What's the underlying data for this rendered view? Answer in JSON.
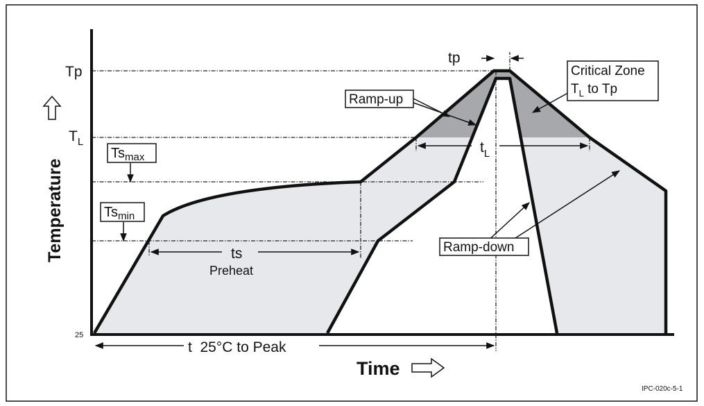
{
  "axes": {
    "y_label": "Temperature",
    "x_label": "Time",
    "levels": {
      "peak": "Tp",
      "liquidus": {
        "main": "T",
        "sub": "L"
      },
      "base": "25"
    }
  },
  "annotations": {
    "ts_max": {
      "main": "Ts",
      "sub": "max"
    },
    "ts_min": {
      "main": "Ts",
      "sub": "min"
    },
    "tp": "tp",
    "critical_zone": {
      "line1": "Critical Zone",
      "line2_main": "T",
      "line2_sub": "L",
      "line2_rest": " to Tp"
    },
    "ramp_up": "Ramp-up",
    "ramp_down": "Ramp-down",
    "tl": {
      "main": "t",
      "sub": "L"
    },
    "ts": "ts",
    "preheat": "Preheat",
    "t_to_peak": "t  25°C to Peak"
  },
  "figure_id": "IPC-020c-5-1"
}
